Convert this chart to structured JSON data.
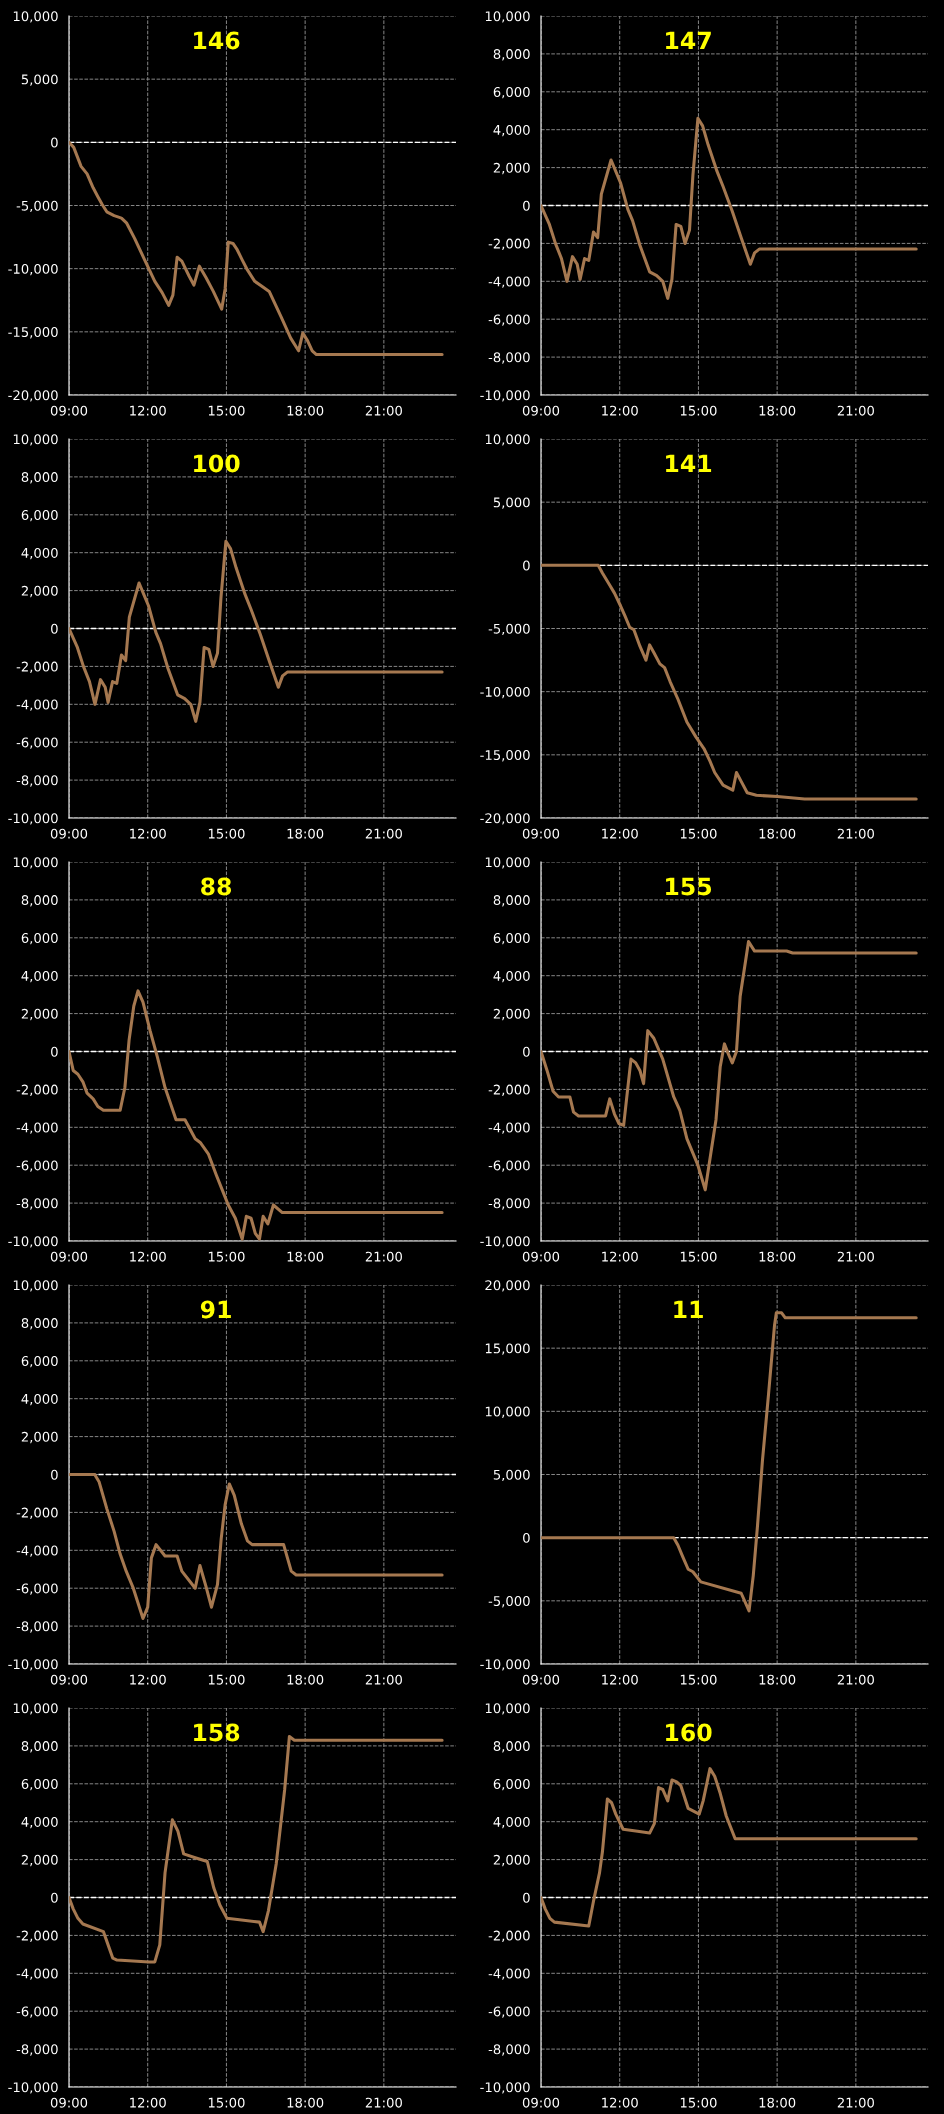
{
  "chart_data": [
    {
      "type": "line",
      "title": "146",
      "grid": true,
      "xlim": [
        9,
        23.75
      ],
      "ylim": [
        -20000,
        10000
      ],
      "xticks": [
        {
          "value": 9,
          "label": "09:00"
        },
        {
          "value": 12,
          "label": "12:00"
        },
        {
          "value": 15,
          "label": "15:00"
        },
        {
          "value": 18,
          "label": "18:00"
        },
        {
          "value": 21,
          "label": "21:00"
        }
      ],
      "yticks": [
        {
          "value": -20000,
          "label": "-20,000"
        },
        {
          "value": -15000,
          "label": "-15,000"
        },
        {
          "value": -10000,
          "label": "-10,000"
        },
        {
          "value": -5000,
          "label": "-5,000"
        },
        0,
        {
          "value": 5000,
          "label": "5,000"
        },
        {
          "value": 10000,
          "label": "10,000"
        }
      ],
      "ref_lines": [
        {
          "axis": "y",
          "value": 0,
          "color": "#ffffff",
          "line_style": "dashed"
        }
      ],
      "x": [
        9.0,
        9.18,
        9.46,
        9.69,
        9.92,
        10.1,
        10.26,
        10.44,
        10.72,
        11.0,
        11.2,
        11.5,
        11.86,
        12.27,
        12.55,
        12.8,
        12.96,
        13.12,
        13.3,
        13.58,
        13.76,
        13.97,
        14.22,
        14.5,
        14.82,
        14.95,
        15.07,
        15.25,
        15.41,
        15.6,
        15.8,
        16.08,
        16.35,
        16.63,
        17.08,
        17.45,
        17.75,
        17.91,
        18.09,
        18.27,
        18.43,
        23.22
      ],
      "series": [
        {
          "color": "#a57850",
          "values": [
            0,
            -400,
            -1900,
            -2500,
            -3600,
            -4300,
            -4900,
            -5500,
            -5800,
            -6000,
            -6400,
            -7600,
            -9200,
            -11000,
            -11900,
            -12900,
            -12100,
            -9100,
            -9400,
            -10600,
            -11300,
            -9800,
            -10700,
            -11800,
            -13200,
            -11600,
            -7900,
            -8000,
            -8500,
            -9300,
            -10100,
            -11000,
            -11400,
            -11800,
            -13800,
            -15500,
            -16500,
            -15100,
            -15700,
            -16500,
            -16800,
            -16800
          ]
        }
      ]
    },
    {
      "type": "line",
      "title": "147",
      "grid": true,
      "xlim": [
        9,
        23.75
      ],
      "ylim": [
        -10000,
        10000
      ],
      "xticks": [
        {
          "value": 9,
          "label": "09:00"
        },
        {
          "value": 12,
          "label": "12:00"
        },
        {
          "value": 15,
          "label": "15:00"
        },
        {
          "value": 18,
          "label": "18:00"
        },
        {
          "value": 21,
          "label": "21:00"
        }
      ],
      "yticks": [
        {
          "value": -10000,
          "label": "-10,000"
        },
        {
          "value": -8000,
          "label": "-8,000"
        },
        {
          "value": -6000,
          "label": "-6,000"
        },
        {
          "value": -4000,
          "label": "-4,000"
        },
        {
          "value": -2000,
          "label": "-2,000"
        },
        0,
        {
          "value": 2000,
          "label": "2,000"
        },
        {
          "value": 4000,
          "label": "4,000"
        },
        {
          "value": 6000,
          "label": "6,000"
        },
        {
          "value": 8000,
          "label": "8,000"
        },
        {
          "value": 10000,
          "label": "10,000"
        }
      ],
      "ref_lines": [
        {
          "axis": "y",
          "value": 0,
          "color": "#ffffff",
          "line_style": "dashed"
        }
      ],
      "x": [
        9.0,
        9.32,
        9.55,
        9.78,
        9.99,
        10.2,
        10.38,
        10.49,
        10.66,
        10.82,
        11.0,
        11.16,
        11.3,
        11.67,
        11.85,
        12.03,
        12.31,
        12.49,
        12.77,
        13.14,
        13.41,
        13.64,
        13.83,
        13.99,
        14.15,
        14.33,
        14.49,
        14.66,
        14.79,
        14.98,
        15.16,
        15.37,
        15.71,
        15.94,
        16.29,
        16.63,
        16.98,
        17.14,
        17.32,
        23.3
      ],
      "series": [
        {
          "color": "#a57850",
          "values": [
            0,
            -1000,
            -2000,
            -2800,
            -4000,
            -2700,
            -3100,
            -3900,
            -2800,
            -2900,
            -1400,
            -1700,
            600,
            2400,
            1800,
            1200,
            -200,
            -800,
            -2100,
            -3500,
            -3700,
            -4000,
            -4900,
            -3900,
            -1000,
            -1100,
            -2000,
            -1300,
            1600,
            4600,
            4200,
            3200,
            1800,
            1000,
            -300,
            -1700,
            -3100,
            -2500,
            -2300,
            -2300
          ]
        }
      ]
    },
    {
      "type": "line",
      "title": "100",
      "grid": true,
      "xlim": [
        9,
        23.75
      ],
      "ylim": [
        -10000,
        10000
      ],
      "xticks": [
        {
          "value": 9,
          "label": "09:00"
        },
        {
          "value": 12,
          "label": "12:00"
        },
        {
          "value": 15,
          "label": "15:00"
        },
        {
          "value": 18,
          "label": "18:00"
        },
        {
          "value": 21,
          "label": "21:00"
        }
      ],
      "yticks": [
        {
          "value": -10000,
          "label": "-10,000"
        },
        {
          "value": -8000,
          "label": "-8,000"
        },
        {
          "value": -6000,
          "label": "-6,000"
        },
        {
          "value": -4000,
          "label": "-4,000"
        },
        {
          "value": -2000,
          "label": "-2,000"
        },
        0,
        {
          "value": 2000,
          "label": "2,000"
        },
        {
          "value": 4000,
          "label": "4,000"
        },
        {
          "value": 6000,
          "label": "6,000"
        },
        {
          "value": 8000,
          "label": "8,000"
        },
        {
          "value": 10000,
          "label": "10,000"
        }
      ],
      "ref_lines": [
        {
          "axis": "y",
          "value": 0,
          "color": "#ffffff",
          "line_style": "dashed"
        }
      ],
      "x": [
        9.0,
        9.32,
        9.55,
        9.78,
        9.99,
        10.2,
        10.38,
        10.49,
        10.66,
        10.82,
        11.0,
        11.16,
        11.3,
        11.67,
        11.85,
        12.03,
        12.31,
        12.49,
        12.77,
        13.14,
        13.41,
        13.64,
        13.83,
        13.99,
        14.15,
        14.33,
        14.49,
        14.66,
        14.79,
        14.98,
        15.16,
        15.37,
        15.71,
        15.94,
        16.29,
        16.63,
        16.98,
        17.14,
        17.32,
        23.22
      ],
      "series": [
        {
          "color": "#a57850",
          "values": [
            0,
            -1000,
            -2000,
            -2800,
            -4000,
            -2700,
            -3100,
            -3900,
            -2800,
            -2900,
            -1400,
            -1700,
            600,
            2400,
            1800,
            1200,
            -200,
            -800,
            -2100,
            -3500,
            -3700,
            -4000,
            -4900,
            -3900,
            -1000,
            -1100,
            -2000,
            -1300,
            1600,
            4600,
            4200,
            3200,
            1800,
            1000,
            -300,
            -1700,
            -3100,
            -2500,
            -2300,
            -2300
          ]
        }
      ]
    },
    {
      "type": "line",
      "title": "141",
      "grid": true,
      "xlim": [
        9,
        23.75
      ],
      "ylim": [
        -20000,
        10000
      ],
      "xticks": [
        {
          "value": 9,
          "label": "09:00"
        },
        {
          "value": 12,
          "label": "12:00"
        },
        {
          "value": 15,
          "label": "15:00"
        },
        {
          "value": 18,
          "label": "18:00"
        },
        {
          "value": 21,
          "label": "21:00"
        }
      ],
      "yticks": [
        {
          "value": -20000,
          "label": "-20,000"
        },
        {
          "value": -15000,
          "label": "-15,000"
        },
        {
          "value": -10000,
          "label": "-10,000"
        },
        {
          "value": -5000,
          "label": "-5,000"
        },
        0,
        {
          "value": 5000,
          "label": "5,000"
        },
        {
          "value": 10000,
          "label": "10,000"
        }
      ],
      "ref_lines": [
        {
          "axis": "y",
          "value": 0,
          "color": "#ffffff",
          "line_style": "dashed"
        }
      ],
      "x": [
        9.0,
        11.18,
        11.34,
        11.57,
        11.8,
        12.03,
        12.2,
        12.38,
        12.54,
        12.77,
        13.0,
        13.14,
        13.3,
        13.53,
        13.71,
        13.92,
        14.22,
        14.56,
        14.91,
        15.21,
        15.44,
        15.62,
        15.94,
        16.31,
        16.45,
        16.63,
        16.86,
        17.21,
        18.01,
        19.05,
        23.3
      ],
      "series": [
        {
          "color": "#a57850",
          "values": [
            0,
            0,
            -600,
            -1400,
            -2200,
            -3200,
            -4000,
            -4900,
            -5100,
            -6400,
            -7500,
            -6300,
            -6900,
            -7800,
            -8100,
            -9200,
            -10600,
            -12400,
            -13600,
            -14500,
            -15500,
            -16400,
            -17400,
            -17800,
            -16400,
            -17100,
            -18000,
            -18200,
            -18300,
            -18500,
            -18500
          ]
        }
      ]
    },
    {
      "type": "line",
      "title": "88",
      "grid": true,
      "xlim": [
        9,
        23.75
      ],
      "ylim": [
        -10000,
        10000
      ],
      "xticks": [
        {
          "value": 9,
          "label": "09:00"
        },
        {
          "value": 12,
          "label": "12:00"
        },
        {
          "value": 15,
          "label": "15:00"
        },
        {
          "value": 18,
          "label": "18:00"
        },
        {
          "value": 21,
          "label": "21:00"
        }
      ],
      "yticks": [
        {
          "value": -10000,
          "label": "-10,000"
        },
        {
          "value": -8000,
          "label": "-8,000"
        },
        {
          "value": -6000,
          "label": "-6,000"
        },
        {
          "value": -4000,
          "label": "-4,000"
        },
        {
          "value": -2000,
          "label": "-2,000"
        },
        0,
        {
          "value": 2000,
          "label": "2,000"
        },
        {
          "value": 4000,
          "label": "4,000"
        },
        {
          "value": 6000,
          "label": "6,000"
        },
        {
          "value": 8000,
          "label": "8,000"
        },
        {
          "value": 10000,
          "label": "10,000"
        }
      ],
      "ref_lines": [
        {
          "axis": "y",
          "value": 0,
          "color": "#ffffff",
          "line_style": "dashed"
        }
      ],
      "x": [
        9.0,
        9.16,
        9.34,
        9.53,
        9.69,
        9.92,
        10.1,
        10.31,
        10.95,
        11.13,
        11.29,
        11.47,
        11.63,
        11.82,
        12.09,
        12.37,
        12.66,
        13.08,
        13.42,
        13.81,
        14.0,
        14.31,
        14.61,
        14.84,
        15.07,
        15.34,
        15.6,
        15.76,
        15.94,
        16.1,
        16.26,
        16.4,
        16.58,
        16.79,
        17.13,
        23.22
      ],
      "series": [
        {
          "color": "#a57850",
          "values": [
            0,
            -1000,
            -1200,
            -1600,
            -2200,
            -2500,
            -2900,
            -3100,
            -3100,
            -1900,
            600,
            2400,
            3200,
            2600,
            1100,
            -300,
            -1900,
            -3600,
            -3600,
            -4600,
            -4800,
            -5400,
            -6500,
            -7300,
            -8100,
            -8800,
            -9900,
            -8700,
            -8800,
            -9600,
            -9900,
            -8700,
            -9100,
            -8100,
            -8500,
            -8500
          ]
        }
      ]
    },
    {
      "type": "line",
      "title": "155",
      "grid": true,
      "xlim": [
        9,
        23.75
      ],
      "ylim": [
        -10000,
        10000
      ],
      "xticks": [
        {
          "value": 9,
          "label": "09:00"
        },
        {
          "value": 12,
          "label": "12:00"
        },
        {
          "value": 15,
          "label": "15:00"
        },
        {
          "value": 18,
          "label": "18:00"
        },
        {
          "value": 21,
          "label": "21:00"
        }
      ],
      "yticks": [
        {
          "value": -10000,
          "label": "-10,000"
        },
        {
          "value": -8000,
          "label": "-8,000"
        },
        {
          "value": -6000,
          "label": "-6,000"
        },
        {
          "value": -4000,
          "label": "-4,000"
        },
        {
          "value": -2000,
          "label": "-2,000"
        },
        0,
        {
          "value": 2000,
          "label": "2,000"
        },
        {
          "value": 4000,
          "label": "4,000"
        },
        {
          "value": 6000,
          "label": "6,000"
        },
        {
          "value": 8000,
          "label": "8,000"
        },
        {
          "value": 10000,
          "label": "10,000"
        }
      ],
      "ref_lines": [
        {
          "axis": "y",
          "value": 0,
          "color": "#ffffff",
          "line_style": "dashed"
        }
      ],
      "x": [
        9.0,
        9.23,
        9.46,
        9.67,
        10.1,
        10.24,
        10.43,
        11.46,
        11.62,
        11.8,
        11.97,
        12.15,
        12.43,
        12.61,
        12.77,
        12.91,
        13.07,
        13.3,
        13.64,
        14.06,
        14.29,
        14.56,
        14.98,
        15.26,
        15.48,
        15.67,
        15.83,
        15.99,
        16.13,
        16.29,
        16.45,
        16.59,
        16.91,
        17.14,
        17.32,
        18.36,
        18.59,
        23.3
      ],
      "series": [
        {
          "color": "#a57850",
          "values": [
            0,
            -1000,
            -2100,
            -2400,
            -2400,
            -3200,
            -3400,
            -3400,
            -2500,
            -3300,
            -3800,
            -3900,
            -400,
            -600,
            -1000,
            -1700,
            1100,
            700,
            -400,
            -2400,
            -3100,
            -4600,
            -6000,
            -7300,
            -5300,
            -3600,
            -800,
            400,
            -100,
            -600,
            0,
            2900,
            5800,
            5300,
            5300,
            5300,
            5200,
            5200
          ]
        }
      ]
    },
    {
      "type": "line",
      "title": "91",
      "grid": true,
      "xlim": [
        9,
        23.75
      ],
      "ylim": [
        -10000,
        10000
      ],
      "xticks": [
        {
          "value": 9,
          "label": "09:00"
        },
        {
          "value": 12,
          "label": "12:00"
        },
        {
          "value": 15,
          "label": "15:00"
        },
        {
          "value": 18,
          "label": "18:00"
        },
        {
          "value": 21,
          "label": "21:00"
        }
      ],
      "yticks": [
        {
          "value": -10000,
          "label": "-10,000"
        },
        {
          "value": -8000,
          "label": "-8,000"
        },
        {
          "value": -6000,
          "label": "-6,000"
        },
        {
          "value": -4000,
          "label": "-4,000"
        },
        {
          "value": -2000,
          "label": "-2,000"
        },
        0,
        {
          "value": 2000,
          "label": "2,000"
        },
        {
          "value": 4000,
          "label": "4,000"
        },
        {
          "value": 6000,
          "label": "6,000"
        },
        {
          "value": 8000,
          "label": "8,000"
        },
        {
          "value": 10000,
          "label": "10,000"
        }
      ],
      "ref_lines": [
        {
          "axis": "y",
          "value": 0,
          "color": "#ffffff",
          "line_style": "dashed"
        }
      ],
      "x": [
        9.0,
        9.98,
        10.15,
        10.44,
        10.72,
        10.95,
        11.18,
        11.45,
        11.82,
        12.0,
        12.14,
        12.32,
        12.66,
        13.12,
        13.3,
        13.81,
        13.99,
        14.22,
        14.43,
        14.66,
        14.8,
        14.95,
        15.11,
        15.3,
        15.57,
        15.8,
        15.98,
        17.18,
        17.47,
        17.66,
        23.22
      ],
      "series": [
        {
          "color": "#a57850",
          "values": [
            0,
            0,
            -400,
            -1800,
            -3000,
            -4200,
            -5100,
            -6000,
            -7600,
            -7000,
            -4400,
            -3700,
            -4300,
            -4300,
            -5100,
            -6000,
            -4800,
            -5900,
            -7000,
            -5800,
            -3400,
            -1600,
            -500,
            -1100,
            -2600,
            -3500,
            -3700,
            -3700,
            -5100,
            -5300,
            -5300
          ]
        }
      ]
    },
    {
      "type": "line",
      "title": "11",
      "grid": true,
      "xlim": [
        9,
        23.75
      ],
      "ylim": [
        -10000,
        20000
      ],
      "xticks": [
        {
          "value": 9,
          "label": "09:00"
        },
        {
          "value": 12,
          "label": "12:00"
        },
        {
          "value": 15,
          "label": "15:00"
        },
        {
          "value": 18,
          "label": "18:00"
        },
        {
          "value": 21,
          "label": "21:00"
        }
      ],
      "yticks": [
        {
          "value": -10000,
          "label": "-10,000"
        },
        {
          "value": -5000,
          "label": "-5,000"
        },
        0,
        {
          "value": 5000,
          "label": "5,000"
        },
        {
          "value": 10000,
          "label": "10,000"
        },
        {
          "value": 15000,
          "label": "15,000"
        },
        {
          "value": 20000,
          "label": "20,000"
        }
      ],
      "ref_lines": [
        {
          "axis": "y",
          "value": 0,
          "color": "#ffffff",
          "line_style": "dashed"
        }
      ],
      "x": [
        9.0,
        14.06,
        14.22,
        14.4,
        14.61,
        14.79,
        15.09,
        16.63,
        16.93,
        17.09,
        17.25,
        17.44,
        17.67,
        17.9,
        17.97,
        18.17,
        18.31,
        23.3
      ],
      "series": [
        {
          "color": "#a57850",
          "values": [
            0,
            0,
            -600,
            -1500,
            -2500,
            -2700,
            -3500,
            -4400,
            -5800,
            -3000,
            900,
            6100,
            11300,
            16800,
            17800,
            17800,
            17400,
            17400
          ]
        }
      ]
    },
    {
      "type": "line",
      "title": "158",
      "grid": true,
      "xlim": [
        9,
        23.75
      ],
      "ylim": [
        -10000,
        10000
      ],
      "xticks": [
        {
          "value": 9,
          "label": "09:00"
        },
        {
          "value": 12,
          "label": "12:00"
        },
        {
          "value": 15,
          "label": "15:00"
        },
        {
          "value": 18,
          "label": "18:00"
        },
        {
          "value": 21,
          "label": "21:00"
        }
      ],
      "yticks": [
        {
          "value": -10000,
          "label": "-10,000"
        },
        {
          "value": -8000,
          "label": "-8,000"
        },
        {
          "value": -6000,
          "label": "-6,000"
        },
        {
          "value": -4000,
          "label": "-4,000"
        },
        {
          "value": -2000,
          "label": "-2,000"
        },
        0,
        {
          "value": 2000,
          "label": "2,000"
        },
        {
          "value": 4000,
          "label": "4,000"
        },
        {
          "value": 6000,
          "label": "6,000"
        },
        {
          "value": 8000,
          "label": "8,000"
        },
        {
          "value": 10000,
          "label": "10,000"
        }
      ],
      "ref_lines": [
        {
          "axis": "y",
          "value": 0,
          "color": "#ffffff",
          "line_style": "dashed"
        }
      ],
      "x": [
        9.0,
        9.16,
        9.34,
        9.53,
        10.31,
        10.49,
        10.67,
        10.83,
        12.05,
        12.27,
        12.46,
        12.66,
        12.94,
        13.15,
        13.37,
        13.81,
        14.27,
        14.52,
        14.75,
        15.02,
        16.26,
        16.4,
        16.6,
        16.9,
        17.22,
        17.4,
        17.59,
        23.22
      ],
      "series": [
        {
          "color": "#a57850",
          "values": [
            0,
            -600,
            -1100,
            -1400,
            -1800,
            -2500,
            -3200,
            -3300,
            -3400,
            -3400,
            -2500,
            1300,
            4100,
            3500,
            2300,
            2100,
            1900,
            500,
            -400,
            -1100,
            -1300,
            -1800,
            -700,
            1800,
            5700,
            8500,
            8300,
            8300
          ]
        }
      ]
    },
    {
      "type": "line",
      "title": "160",
      "grid": true,
      "xlim": [
        9,
        23.75
      ],
      "ylim": [
        -10000,
        10000
      ],
      "xticks": [
        {
          "value": 9,
          "label": "09:00"
        },
        {
          "value": 12,
          "label": "12:00"
        },
        {
          "value": 15,
          "label": "15:00"
        },
        {
          "value": 18,
          "label": "18:00"
        },
        {
          "value": 21,
          "label": "21:00"
        }
      ],
      "yticks": [
        {
          "value": -10000,
          "label": "-10,000"
        },
        {
          "value": -8000,
          "label": "-8,000"
        },
        {
          "value": -6000,
          "label": "-6,000"
        },
        {
          "value": -4000,
          "label": "-4,000"
        },
        {
          "value": -2000,
          "label": "-2,000"
        },
        0,
        {
          "value": 2000,
          "label": "2,000"
        },
        {
          "value": 4000,
          "label": "4,000"
        },
        {
          "value": 6000,
          "label": "6,000"
        },
        {
          "value": 8000,
          "label": "8,000"
        },
        {
          "value": 10000,
          "label": "10,000"
        }
      ],
      "ref_lines": [
        {
          "axis": "y",
          "value": 0,
          "color": "#ffffff",
          "line_style": "dashed"
        }
      ],
      "x": [
        9.0,
        9.16,
        9.34,
        9.51,
        10.82,
        11.0,
        11.23,
        11.34,
        11.53,
        11.69,
        11.85,
        12.13,
        12.68,
        13.14,
        13.32,
        13.48,
        13.64,
        13.83,
        13.99,
        14.17,
        14.33,
        14.61,
        15.03,
        15.18,
        15.44,
        15.62,
        15.83,
        16.06,
        16.4,
        23.3
      ],
      "series": [
        {
          "color": "#a57850",
          "values": [
            0,
            -600,
            -1100,
            -1300,
            -1500,
            -200,
            1300,
            2400,
            5200,
            5000,
            4400,
            3600,
            3500,
            3400,
            3900,
            5800,
            5700,
            5100,
            6200,
            6100,
            5900,
            4700,
            4400,
            5100,
            6800,
            6400,
            5500,
            4300,
            3100,
            3100
          ]
        }
      ]
    }
  ]
}
